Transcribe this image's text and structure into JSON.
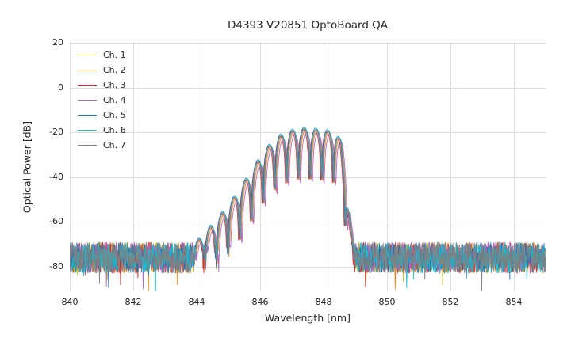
{
  "chart_data": {
    "type": "line",
    "title": "D4393 V20851 OptoBoard QA",
    "xlabel": "Wavelength [nm]",
    "ylabel": "Optical Power [dB]",
    "xlim": [
      840,
      855
    ],
    "ylim": [
      -91,
      20
    ],
    "xticks": [
      840,
      842,
      844,
      846,
      848,
      850,
      852,
      854
    ],
    "yticks": [
      20,
      0,
      -20,
      -40,
      -60,
      -80
    ],
    "grid": true,
    "grid_color": "#dcdcdc",
    "background": "#ffffff",
    "legend_position": "upper left",
    "sampling_step_nm": 0.013,
    "noise_floor": {
      "mean_db": -76,
      "spread_db": 14,
      "deep_spike_prob": 0.012,
      "deep_spike_extra_db": 12
    },
    "fringes": {
      "mode_spacing_nm": 0.37,
      "reference_peak_nm": 847.4,
      "modulation_depth_db": 22
    },
    "spectrum_envelope": [
      [
        843.8,
        -72
      ],
      [
        844.2,
        -66
      ],
      [
        844.6,
        -60
      ],
      [
        845.0,
        -53
      ],
      [
        845.4,
        -45
      ],
      [
        845.8,
        -36
      ],
      [
        846.2,
        -27.5
      ],
      [
        846.6,
        -22
      ],
      [
        847.0,
        -19.5
      ],
      [
        847.4,
        -18.5
      ],
      [
        847.8,
        -19
      ],
      [
        848.15,
        -19.6
      ],
      [
        848.4,
        -20.5
      ],
      [
        848.55,
        -24
      ],
      [
        848.7,
        -40
      ],
      [
        848.85,
        -62
      ],
      [
        849.0,
        -78
      ]
    ],
    "series": [
      {
        "name": "Ch. 1",
        "color": "#bcbd22",
        "x_offset_nm": 0.0,
        "level_offset_db": 0.0,
        "seed": 101
      },
      {
        "name": "Ch. 2",
        "color": "#ff7f0e",
        "x_offset_nm": 0.03,
        "level_offset_db": -0.4,
        "seed": 202
      },
      {
        "name": "Ch. 3",
        "color": "#d62728",
        "x_offset_nm": -0.04,
        "level_offset_db": -0.2,
        "seed": 303
      },
      {
        "name": "Ch. 4",
        "color": "#ab63c9",
        "x_offset_nm": 0.06,
        "level_offset_db": -1.5,
        "seed": 404
      },
      {
        "name": "Ch. 5",
        "color": "#1f77b4",
        "x_offset_nm": -0.02,
        "level_offset_db": 0.8,
        "seed": 505
      },
      {
        "name": "Ch. 6",
        "color": "#17becf",
        "x_offset_nm": 0.01,
        "level_offset_db": 0.5,
        "seed": 606
      },
      {
        "name": "Ch. 7",
        "color": "#7f7f7f",
        "x_offset_nm": 0.0,
        "level_offset_db": 0.0,
        "seed": 707
      }
    ]
  }
}
